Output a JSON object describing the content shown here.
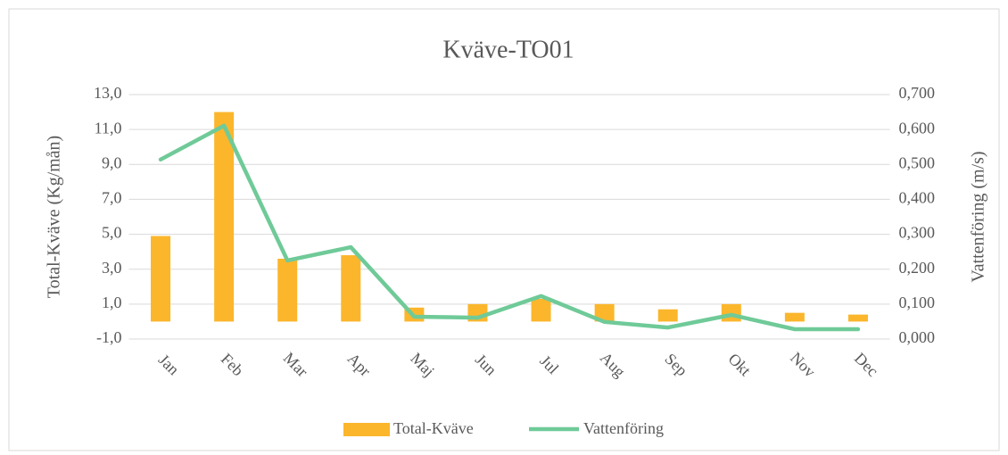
{
  "chart_data": {
    "type": "bar_line",
    "title": "Kväve-TO01",
    "y_label": "Total-Kväve (Kg/mån)",
    "y2_label": "Vattenföring (m/s)",
    "categories": [
      "Jan",
      "Feb",
      "Mar",
      "Apr",
      "Maj",
      "Jun",
      "Jul",
      "Aug",
      "Sep",
      "Okt",
      "Nov",
      "Dec"
    ],
    "series": [
      {
        "name": "Total-Kväve",
        "type": "bar",
        "color": "#fbb62c",
        "values": [
          4.9,
          12.0,
          3.6,
          3.8,
          0.8,
          1.0,
          1.3,
          1.0,
          0.7,
          1.0,
          0.5,
          0.4
        ]
      },
      {
        "name": "Vattenföring",
        "type": "line",
        "axis": "y2",
        "color": "#6fca98",
        "values": [
          0.514,
          0.611,
          0.225,
          0.263,
          0.064,
          0.061,
          0.123,
          0.049,
          0.033,
          0.069,
          0.028,
          0.028
        ]
      }
    ],
    "ylim": [
      -1,
      13
    ],
    "yticks": [
      {
        "value": -1,
        "label": "-1,0"
      },
      {
        "value": 1,
        "label": "1,0"
      },
      {
        "value": 3,
        "label": "3,0"
      },
      {
        "value": 5,
        "label": "5,0"
      },
      {
        "value": 7,
        "label": "7,0"
      },
      {
        "value": 9,
        "label": "9,0"
      },
      {
        "value": 11,
        "label": "11,0"
      },
      {
        "value": 13,
        "label": "13,0"
      }
    ],
    "y2lim": [
      0,
      0.7
    ],
    "y2ticks": [
      {
        "value": 0,
        "label": "0,000"
      },
      {
        "value": 0.1,
        "label": "0,100"
      },
      {
        "value": 0.2,
        "label": "0,200"
      },
      {
        "value": 0.3,
        "label": "0,300"
      },
      {
        "value": 0.4,
        "label": "0,400"
      },
      {
        "value": 0.5,
        "label": "0,500"
      },
      {
        "value": 0.6,
        "label": "0,600"
      },
      {
        "value": 0.7,
        "label": "0,700"
      }
    ],
    "grid": true,
    "legend": "bottom"
  }
}
